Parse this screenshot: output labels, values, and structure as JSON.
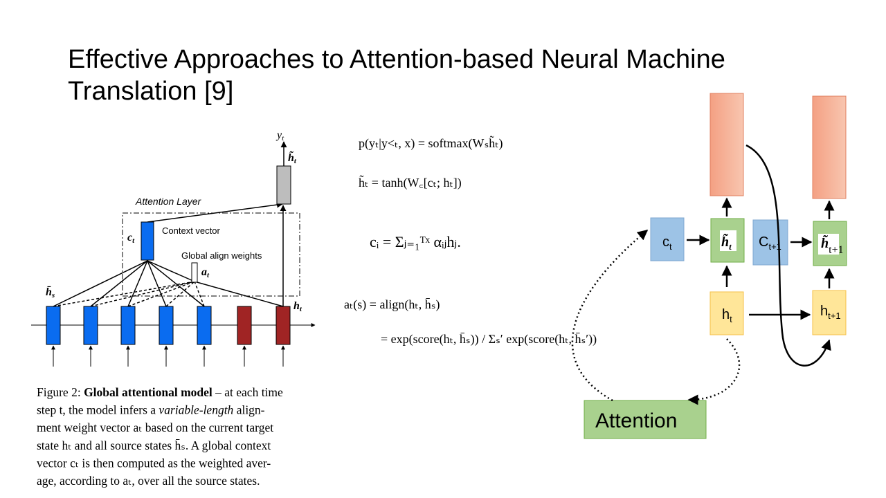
{
  "title": [
    "Effective Approaches to Attention-based Neural Machine",
    "Translation [9]"
  ],
  "figure": {
    "y": {
      "base": "y",
      "sub": "t"
    },
    "htilde": {
      "base": "h̃",
      "sub": "t"
    },
    "attention_layer": "Attention Layer",
    "ct": {
      "base": "c",
      "sub": "t"
    },
    "context_vector": "Context vector",
    "global_align": "Global align weights",
    "at": {
      "base": "a",
      "sub": "t"
    },
    "hs": {
      "base": "h̄",
      "sub": "s"
    },
    "ht": {
      "base": "h",
      "sub": "t"
    }
  },
  "caption": [
    [
      {
        "text": "Figure 2: ",
        "style": "normal"
      },
      {
        "text": "Global attentional model",
        "style": "bold"
      },
      {
        "text": " – at each time",
        "style": "normal"
      }
    ],
    [
      {
        "text": "step t, the model infers a ",
        "style": "normal"
      },
      {
        "text": "variable-length",
        "style": "italic"
      },
      {
        "text": " align-",
        "style": "normal"
      }
    ],
    [
      {
        "text": "ment weight vector aₜ based on the current target",
        "style": "normal"
      }
    ],
    [
      {
        "text": "state hₜ and all source states h̄ₛ. A global context",
        "style": "normal"
      }
    ],
    [
      {
        "text": "vector cₜ is then computed as the weighted aver-",
        "style": "normal"
      }
    ],
    [
      {
        "text": "age, according to aₜ, over all the source states.",
        "style": "normal"
      }
    ]
  ],
  "equations": [
    "p(yₜ|y<ₜ, x) = softmax(Wₛh̃ₜ)",
    "h̃ₜ = tanh(W꜀[cₜ; hₜ])",
    "cᵢ = Σⱼ₌₁ᵀˣ αᵢⱼhⱼ.",
    "aₜ(s) = align(hₜ, h̄ₛ)",
    "= exp(score(hₜ, h̄ₛ)) / Σₛ′ exp(score(hₜ, h̄ₛ′))"
  ],
  "diagram": {
    "ct": {
      "base": "c",
      "sub": "t"
    },
    "htilde_t": {
      "base": "h̃",
      "sub": "t"
    },
    "ct1": {
      "base": "C",
      "sub": "t+1"
    },
    "htilde_t1": {
      "base": "h̃",
      "sub": "t+1"
    },
    "ht": {
      "base": "h",
      "sub": "t"
    },
    "ht1": {
      "base": "h",
      "sub": "t+1"
    },
    "attention": "Attention"
  }
}
